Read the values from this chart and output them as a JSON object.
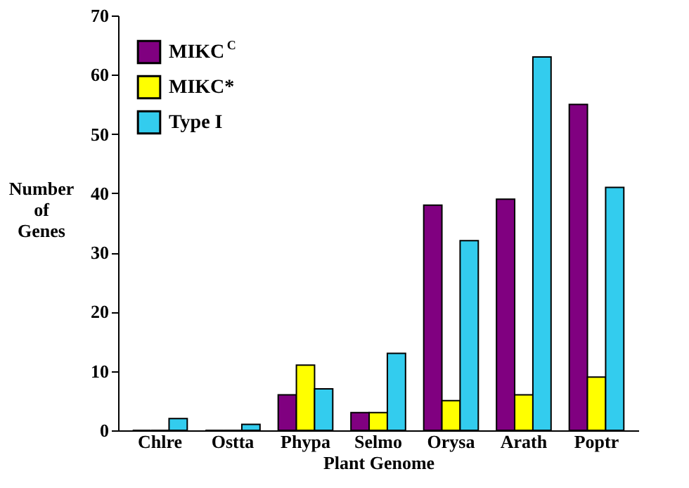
{
  "chart_data": {
    "type": "bar",
    "xlabel": "Plant Genome",
    "ylabel": "Number of Genes",
    "categories": [
      "Chlre",
      "Ostta",
      "Phypa",
      "Selmo",
      "Orysa",
      "Arath",
      "Poptr"
    ],
    "series": [
      {
        "name": "MIKC$^{C}$",
        "color": "#800080",
        "values": [
          0,
          0,
          6,
          3,
          38,
          39,
          55
        ]
      },
      {
        "name": "MIKC*",
        "color": "#ffff00",
        "values": [
          0,
          0,
          11,
          3,
          5,
          6,
          9
        ]
      },
      {
        "name": "Type I",
        "color": "#33ccee",
        "values": [
          2,
          1,
          7,
          13,
          32,
          63,
          41
        ]
      }
    ],
    "ylim": [
      0,
      70
    ],
    "yticks": [
      0,
      10,
      20,
      30,
      40,
      50,
      60,
      70
    ],
    "grid": false,
    "legend": "top left"
  }
}
